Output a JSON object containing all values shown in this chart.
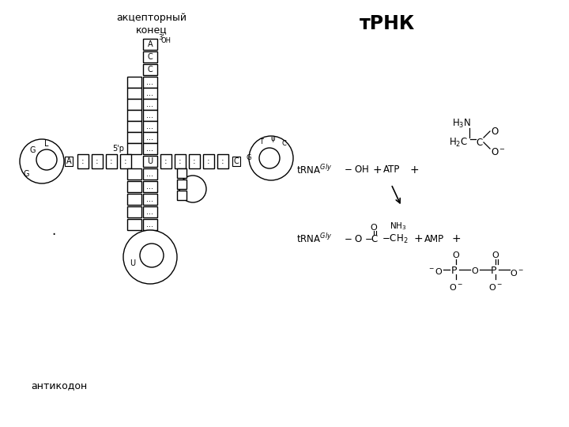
{
  "title": "тРНК",
  "bg_color": "#ffffff",
  "label_acceptor": "акцепторный\nконец",
  "label_anticodon": "антикодон",
  "black": "#000000"
}
